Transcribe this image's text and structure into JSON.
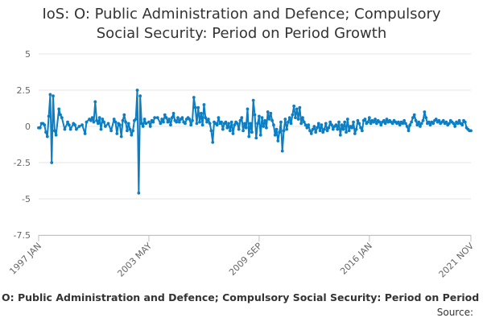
{
  "chart_data": {
    "type": "line",
    "title_lines": [
      "IoS: O: Public Administration and Defence; Compulsory",
      "Social Security: Period on Period Growth"
    ],
    "xlabel": "",
    "ylabel": "",
    "y_ticks": [
      5,
      2.5,
      0,
      -2.5,
      -5,
      -7.5
    ],
    "y_tick_labels": [
      "5",
      "2.5",
      "0",
      "-2.5",
      "-5",
      "-7.5"
    ],
    "ylim": [
      -7.5,
      5
    ],
    "x_range": [
      "1997 JAN",
      "2021 NOV"
    ],
    "x_tick_labels": [
      "1997 JAN",
      "2003 MAY",
      "2009 SEP",
      "2016 JAN",
      "2021 NOV"
    ],
    "x_tick_month_index": [
      0,
      76,
      152,
      228,
      298
    ],
    "grid": true,
    "series": [
      {
        "name": "O: Public Administration and Defence; Compulsory Social Security: Period on Period Growth",
        "color": "#0b7ec4",
        "anchors": [
          [
            0,
            -0.1
          ],
          [
            1,
            -0.1
          ],
          [
            2,
            0.2
          ],
          [
            3,
            0.2
          ],
          [
            4,
            0.1
          ],
          [
            5,
            -0.4
          ],
          [
            6,
            -0.7
          ],
          [
            7,
            0.7
          ],
          [
            8,
            2.2
          ],
          [
            9,
            -2.5
          ],
          [
            10,
            2.1
          ],
          [
            11,
            -0.3
          ],
          [
            12,
            -0.6
          ],
          [
            14,
            1.2
          ],
          [
            15,
            0.8
          ],
          [
            16,
            0.6
          ],
          [
            18,
            -0.2
          ],
          [
            20,
            0.3
          ],
          [
            21,
            0.1
          ],
          [
            22,
            -0.2
          ],
          [
            24,
            0.2
          ],
          [
            25,
            0.1
          ],
          [
            26,
            -0.2
          ],
          [
            28,
            0.0
          ],
          [
            30,
            0.1
          ],
          [
            32,
            -0.5
          ],
          [
            33,
            0.3
          ],
          [
            35,
            0.5
          ],
          [
            36,
            0.4
          ],
          [
            37,
            0.6
          ],
          [
            38,
            0.3
          ],
          [
            39,
            1.7
          ],
          [
            40,
            0.4
          ],
          [
            41,
            0.2
          ],
          [
            42,
            0.6
          ],
          [
            43,
            -0.2
          ],
          [
            44,
            0.5
          ],
          [
            45,
            0.3
          ],
          [
            46,
            0.0
          ],
          [
            48,
            0.2
          ],
          [
            50,
            -0.3
          ],
          [
            52,
            0.5
          ],
          [
            53,
            0.3
          ],
          [
            54,
            -0.5
          ],
          [
            55,
            0.2
          ],
          [
            56,
            0.1
          ],
          [
            57,
            -0.7
          ],
          [
            58,
            0.4
          ],
          [
            59,
            0.8
          ],
          [
            60,
            0.3
          ],
          [
            61,
            -0.3
          ],
          [
            62,
            0.2
          ],
          [
            63,
            -0.2
          ],
          [
            64,
            -0.6
          ],
          [
            65,
            -0.3
          ],
          [
            66,
            0.4
          ],
          [
            67,
            0.5
          ],
          [
            68,
            2.5
          ],
          [
            69,
            -4.6
          ],
          [
            70,
            2.1
          ],
          [
            71,
            0.2
          ],
          [
            72,
            0.0
          ],
          [
            73,
            0.5
          ],
          [
            74,
            0.2
          ],
          [
            76,
            0.3
          ],
          [
            77,
            0.0
          ],
          [
            78,
            0.4
          ],
          [
            79,
            0.3
          ],
          [
            80,
            0.6
          ],
          [
            82,
            0.6
          ],
          [
            84,
            0.2
          ],
          [
            85,
            0.5
          ],
          [
            86,
            0.3
          ],
          [
            87,
            0.8
          ],
          [
            88,
            0.6
          ],
          [
            89,
            0.3
          ],
          [
            90,
            0.5
          ],
          [
            91,
            0.1
          ],
          [
            92,
            0.6
          ],
          [
            93,
            0.9
          ],
          [
            94,
            0.4
          ],
          [
            95,
            0.3
          ],
          [
            96,
            0.6
          ],
          [
            97,
            0.3
          ],
          [
            98,
            0.5
          ],
          [
            99,
            0.6
          ],
          [
            100,
            0.3
          ],
          [
            101,
            0.2
          ],
          [
            102,
            0.5
          ],
          [
            103,
            0.6
          ],
          [
            104,
            0.5
          ],
          [
            105,
            0.1
          ],
          [
            106,
            0.4
          ],
          [
            107,
            2.0
          ],
          [
            108,
            1.3
          ],
          [
            109,
            0.2
          ],
          [
            110,
            1.3
          ],
          [
            111,
            0.3
          ],
          [
            112,
            0.9
          ],
          [
            113,
            0.1
          ],
          [
            114,
            1.5
          ],
          [
            115,
            0.6
          ],
          [
            116,
            0.3
          ],
          [
            117,
            0.5
          ],
          [
            118,
            0.2
          ],
          [
            119,
            -0.3
          ],
          [
            120,
            -1.1
          ],
          [
            121,
            0.3
          ],
          [
            122,
            0.2
          ],
          [
            123,
            0.1
          ],
          [
            124,
            0.6
          ],
          [
            125,
            0.2
          ],
          [
            126,
            0.3
          ],
          [
            127,
            -0.2
          ],
          [
            128,
            0.2
          ],
          [
            129,
            0.3
          ],
          [
            130,
            -0.1
          ],
          [
            131,
            0.2
          ],
          [
            132,
            -0.3
          ],
          [
            133,
            0.3
          ],
          [
            134,
            -0.5
          ],
          [
            135,
            0.1
          ],
          [
            136,
            0.3
          ],
          [
            137,
            0.2
          ],
          [
            138,
            -0.2
          ],
          [
            139,
            0.4
          ],
          [
            140,
            0.6
          ],
          [
            141,
            -0.3
          ],
          [
            142,
            0.2
          ],
          [
            143,
            -0.1
          ],
          [
            144,
            1.2
          ],
          [
            145,
            -0.7
          ],
          [
            146,
            0.2
          ],
          [
            147,
            -0.4
          ],
          [
            148,
            1.8
          ],
          [
            149,
            0.8
          ],
          [
            150,
            -0.8
          ],
          [
            151,
            0.2
          ],
          [
            152,
            0.7
          ],
          [
            153,
            -0.6
          ],
          [
            154,
            0.6
          ],
          [
            155,
            0.0
          ],
          [
            156,
            0.4
          ],
          [
            157,
            -0.1
          ],
          [
            158,
            1.0
          ],
          [
            159,
            0.5
          ],
          [
            160,
            0.9
          ],
          [
            161,
            0.4
          ],
          [
            162,
            0.1
          ],
          [
            163,
            -0.6
          ],
          [
            164,
            -0.2
          ],
          [
            165,
            -1.0
          ],
          [
            166,
            -0.4
          ],
          [
            167,
            0.3
          ],
          [
            168,
            -1.7
          ],
          [
            169,
            -0.3
          ],
          [
            170,
            0.5
          ],
          [
            171,
            -0.2
          ],
          [
            172,
            0.3
          ],
          [
            173,
            0.6
          ],
          [
            174,
            0.2
          ],
          [
            175,
            0.8
          ],
          [
            176,
            1.4
          ],
          [
            177,
            0.6
          ],
          [
            178,
            1.2
          ],
          [
            179,
            0.5
          ],
          [
            180,
            1.3
          ],
          [
            181,
            0.2
          ],
          [
            182,
            0.6
          ],
          [
            183,
            0.3
          ],
          [
            184,
            0.1
          ],
          [
            185,
            -0.1
          ],
          [
            186,
            0.1
          ],
          [
            187,
            -0.3
          ],
          [
            188,
            -0.5
          ],
          [
            189,
            -0.2
          ],
          [
            190,
            0.0
          ],
          [
            191,
            -0.4
          ],
          [
            192,
            -0.1
          ],
          [
            193,
            0.2
          ],
          [
            194,
            -0.3
          ],
          [
            195,
            0.1
          ],
          [
            196,
            -0.4
          ],
          [
            197,
            -0.2
          ],
          [
            198,
            0.2
          ],
          [
            199,
            -0.3
          ],
          [
            200,
            -0.1
          ],
          [
            201,
            0.3
          ],
          [
            202,
            0.1
          ],
          [
            203,
            -0.2
          ],
          [
            204,
            0.0
          ],
          [
            205,
            0.1
          ],
          [
            206,
            -0.2
          ],
          [
            207,
            0.3
          ],
          [
            208,
            -0.6
          ],
          [
            209,
            0.1
          ],
          [
            210,
            -0.2
          ],
          [
            211,
            0.3
          ],
          [
            212,
            -0.4
          ],
          [
            213,
            0.5
          ],
          [
            214,
            -0.3
          ],
          [
            215,
            0.0
          ],
          [
            216,
            -0.1
          ],
          [
            217,
            0.3
          ],
          [
            218,
            -0.5
          ],
          [
            219,
            -0.2
          ],
          [
            220,
            0.4
          ],
          [
            221,
            0.2
          ],
          [
            222,
            -0.1
          ],
          [
            223,
            -0.3
          ],
          [
            224,
            0.4
          ],
          [
            225,
            0.5
          ],
          [
            226,
            0.2
          ],
          [
            227,
            0.3
          ],
          [
            228,
            0.6
          ],
          [
            229,
            0.2
          ],
          [
            230,
            0.4
          ],
          [
            231,
            0.3
          ],
          [
            232,
            0.5
          ],
          [
            233,
            0.2
          ],
          [
            234,
            0.4
          ],
          [
            235,
            0.3
          ],
          [
            236,
            0.1
          ],
          [
            237,
            0.3
          ],
          [
            238,
            0.4
          ],
          [
            239,
            0.2
          ],
          [
            240,
            0.5
          ],
          [
            241,
            0.3
          ],
          [
            242,
            0.4
          ],
          [
            243,
            0.3
          ],
          [
            244,
            0.2
          ],
          [
            245,
            0.4
          ],
          [
            246,
            0.3
          ],
          [
            247,
            0.2
          ],
          [
            248,
            0.3
          ],
          [
            249,
            0.1
          ],
          [
            250,
            0.3
          ],
          [
            251,
            0.2
          ],
          [
            252,
            0.4
          ],
          [
            253,
            0.2
          ],
          [
            254,
            0.0
          ],
          [
            255,
            -0.3
          ],
          [
            256,
            0.1
          ],
          [
            257,
            0.3
          ],
          [
            258,
            0.6
          ],
          [
            259,
            0.8
          ],
          [
            260,
            0.4
          ],
          [
            261,
            0.1
          ],
          [
            262,
            0.3
          ],
          [
            263,
            0.0
          ],
          [
            264,
            0.2
          ],
          [
            265,
            0.4
          ],
          [
            266,
            1.0
          ],
          [
            267,
            0.6
          ],
          [
            268,
            0.2
          ],
          [
            269,
            0.3
          ],
          [
            270,
            0.1
          ],
          [
            271,
            0.3
          ],
          [
            272,
            0.2
          ],
          [
            273,
            0.4
          ],
          [
            274,
            0.5
          ],
          [
            275,
            0.3
          ],
          [
            276,
            0.4
          ],
          [
            277,
            0.2
          ],
          [
            278,
            0.3
          ],
          [
            279,
            0.4
          ],
          [
            280,
            0.2
          ],
          [
            281,
            0.3
          ],
          [
            282,
            0.1
          ],
          [
            283,
            0.2
          ],
          [
            284,
            0.4
          ],
          [
            285,
            0.3
          ],
          [
            286,
            0.2
          ],
          [
            287,
            0.0
          ],
          [
            288,
            0.3
          ],
          [
            289,
            0.2
          ],
          [
            290,
            0.4
          ],
          [
            291,
            0.2
          ],
          [
            292,
            0.1
          ],
          [
            293,
            0.4
          ],
          [
            294,
            0.3
          ],
          [
            295,
            -0.1
          ],
          [
            296,
            -0.2
          ],
          [
            297,
            -0.3
          ],
          [
            298,
            -0.3
          ]
        ]
      }
    ]
  },
  "legend_label": "O: Public Administration and Defence; Compulsory Social Security: Period on Period Growth",
  "source_label": "Source:"
}
